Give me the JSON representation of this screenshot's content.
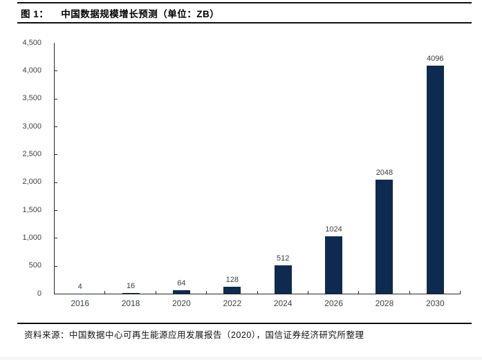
{
  "header": {
    "figure_label": "图 1：",
    "title": "中国数据规模增长预测（单位：ZB）"
  },
  "chart_data": {
    "type": "bar",
    "title": "中国数据规模增长预测",
    "unit": "ZB",
    "categories": [
      "2016",
      "2018",
      "2020",
      "2022",
      "2024",
      "2026",
      "2028",
      "2030"
    ],
    "values": [
      4,
      16,
      64,
      128,
      512,
      1024,
      2048,
      4096
    ],
    "data_labels_shown": true,
    "ylim": [
      0,
      4500
    ],
    "ytick_step": 500,
    "ytick_labels_top_to_bottom": [
      "4,500",
      "4,000",
      "3,500",
      "3,000",
      "2,500",
      "2,000",
      "1,500",
      "1,000",
      "500",
      "0"
    ],
    "bar_color": "#0E2A50",
    "axis_color": "#262626",
    "tick_label_color": "#404040",
    "grid": false,
    "legend_position": "none"
  },
  "footer": {
    "source": "资料来源：中国数据中心可再生能源应用发展报告（2020），国信证券经济研究所整理"
  }
}
